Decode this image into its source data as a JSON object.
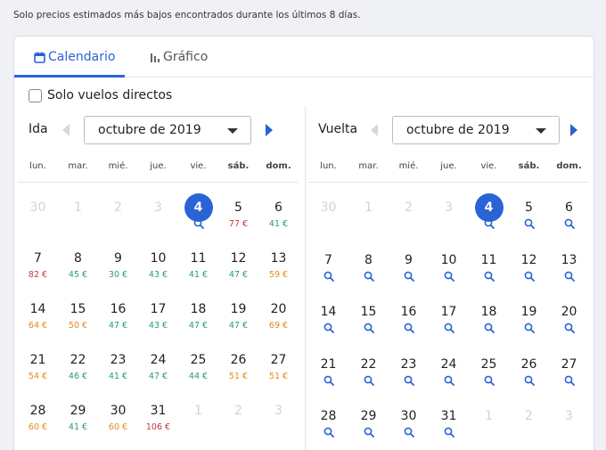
{
  "notice": "Solo precios estimados más bajos encontrados durante los últimos 8 días.",
  "tabs": [
    {
      "label": "Calendario",
      "icon": "calendar-icon",
      "active": true
    },
    {
      "label": "Gráfico",
      "icon": "bar-chart-icon",
      "active": false
    }
  ],
  "direct_only": {
    "label": "Solo vuelos directos",
    "checked": false
  },
  "weekdays": [
    "lun.",
    "mar.",
    "mié.",
    "jue.",
    "vie.",
    "sáb.",
    "dom."
  ],
  "colors": {
    "accent": "#2a63d6",
    "green": "#2a9a78",
    "orange": "#e28a1a",
    "red": "#c43a3a"
  },
  "outbound": {
    "label": "Ida",
    "month": "octubre de 2019",
    "days": [
      {
        "d": "30",
        "muted": true
      },
      {
        "d": "1",
        "muted": true
      },
      {
        "d": "2",
        "muted": true
      },
      {
        "d": "3",
        "muted": true
      },
      {
        "d": "4",
        "today": true,
        "search": true
      },
      {
        "d": "5",
        "price": "77 €",
        "tone": "red"
      },
      {
        "d": "6",
        "price": "41 €",
        "tone": "green"
      },
      {
        "d": "7",
        "price": "82 €",
        "tone": "red"
      },
      {
        "d": "8",
        "price": "45 €",
        "tone": "green"
      },
      {
        "d": "9",
        "price": "30 €",
        "tone": "green"
      },
      {
        "d": "10",
        "price": "43 €",
        "tone": "green"
      },
      {
        "d": "11",
        "price": "41 €",
        "tone": "green"
      },
      {
        "d": "12",
        "price": "47 €",
        "tone": "green"
      },
      {
        "d": "13",
        "price": "59 €",
        "tone": "orange"
      },
      {
        "d": "14",
        "price": "64 €",
        "tone": "orange"
      },
      {
        "d": "15",
        "price": "50 €",
        "tone": "orange"
      },
      {
        "d": "16",
        "price": "47 €",
        "tone": "green"
      },
      {
        "d": "17",
        "price": "43 €",
        "tone": "green"
      },
      {
        "d": "18",
        "price": "47 €",
        "tone": "green"
      },
      {
        "d": "19",
        "price": "47 €",
        "tone": "green"
      },
      {
        "d": "20",
        "price": "69 €",
        "tone": "orange"
      },
      {
        "d": "21",
        "price": "54 €",
        "tone": "orange"
      },
      {
        "d": "22",
        "price": "46 €",
        "tone": "green"
      },
      {
        "d": "23",
        "price": "41 €",
        "tone": "green"
      },
      {
        "d": "24",
        "price": "47 €",
        "tone": "green"
      },
      {
        "d": "25",
        "price": "44 €",
        "tone": "green"
      },
      {
        "d": "26",
        "price": "51 €",
        "tone": "orange"
      },
      {
        "d": "27",
        "price": "51 €",
        "tone": "orange"
      },
      {
        "d": "28",
        "price": "60 €",
        "tone": "orange"
      },
      {
        "d": "29",
        "price": "41 €",
        "tone": "green"
      },
      {
        "d": "30",
        "price": "60 €",
        "tone": "orange"
      },
      {
        "d": "31",
        "price": "106 €",
        "tone": "red"
      },
      {
        "d": "1",
        "muted": true
      },
      {
        "d": "2",
        "muted": true
      },
      {
        "d": "3",
        "muted": true
      }
    ]
  },
  "return": {
    "label": "Vuelta",
    "month": "octubre de 2019",
    "days": [
      {
        "d": "30",
        "muted": true
      },
      {
        "d": "1",
        "muted": true
      },
      {
        "d": "2",
        "muted": true
      },
      {
        "d": "3",
        "muted": true
      },
      {
        "d": "4",
        "today": true,
        "search": true
      },
      {
        "d": "5",
        "search": true
      },
      {
        "d": "6",
        "search": true
      },
      {
        "d": "7",
        "search": true
      },
      {
        "d": "8",
        "search": true
      },
      {
        "d": "9",
        "search": true
      },
      {
        "d": "10",
        "search": true
      },
      {
        "d": "11",
        "search": true
      },
      {
        "d": "12",
        "search": true
      },
      {
        "d": "13",
        "search": true
      },
      {
        "d": "14",
        "search": true
      },
      {
        "d": "15",
        "search": true
      },
      {
        "d": "16",
        "search": true
      },
      {
        "d": "17",
        "search": true
      },
      {
        "d": "18",
        "search": true
      },
      {
        "d": "19",
        "search": true
      },
      {
        "d": "20",
        "search": true
      },
      {
        "d": "21",
        "search": true
      },
      {
        "d": "22",
        "search": true
      },
      {
        "d": "23",
        "search": true
      },
      {
        "d": "24",
        "search": true
      },
      {
        "d": "25",
        "search": true
      },
      {
        "d": "26",
        "search": true
      },
      {
        "d": "27",
        "search": true
      },
      {
        "d": "28",
        "search": true
      },
      {
        "d": "29",
        "search": true
      },
      {
        "d": "30",
        "search": true
      },
      {
        "d": "31",
        "search": true
      },
      {
        "d": "1",
        "muted": true
      },
      {
        "d": "2",
        "muted": true
      },
      {
        "d": "3",
        "muted": true
      }
    ]
  }
}
